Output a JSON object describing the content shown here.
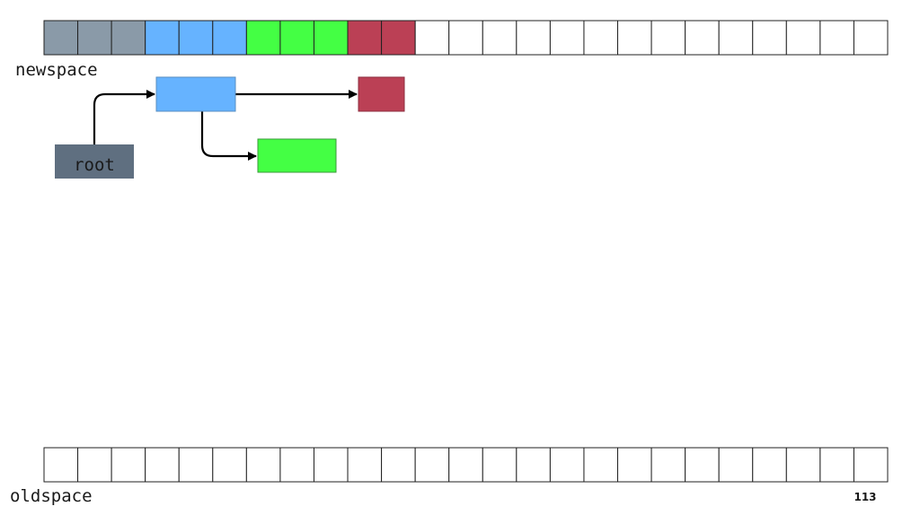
{
  "labels": {
    "newspace": "newspace",
    "root": "root",
    "oldspace": "oldspace"
  },
  "page_number": "113"
}
